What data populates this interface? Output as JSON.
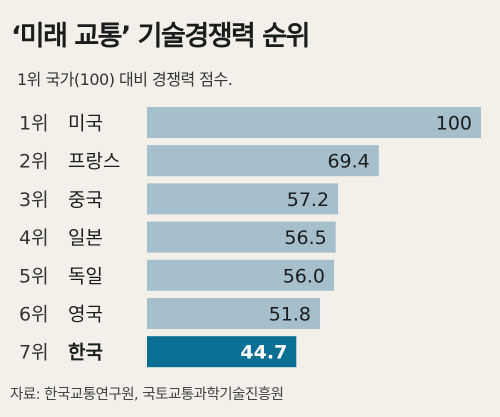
{
  "title": "‘미래 교통’ 기술경쟁력 순위",
  "subtitle": "1위 국가(100) 대비 경쟁력 점수.",
  "source": "자료: 한국교통연구원, 국토교통과학기술진흥원",
  "colors": {
    "bar": "#a5bfcd",
    "highlight": "#0b6e93",
    "background": "#f3f0ea"
  },
  "chart_data": {
    "type": "bar",
    "orientation": "horizontal",
    "categories": [
      "1위 미국",
      "2위 프랑스",
      "3위 중국",
      "4위 일본",
      "5위 독일",
      "6위 영국",
      "7위 한국"
    ],
    "ranks": [
      "1위",
      "2위",
      "3위",
      "4위",
      "5위",
      "6위",
      "7위"
    ],
    "countries": [
      "미국",
      "프랑스",
      "중국",
      "일본",
      "독일",
      "영국",
      "한국"
    ],
    "values": [
      100,
      69.4,
      57.2,
      56.5,
      56.0,
      51.8,
      44.7
    ],
    "labels": [
      "100",
      "69.4",
      "57.2",
      "56.5",
      "56.0",
      "51.8",
      "44.7"
    ],
    "highlight_index": 6,
    "xlim": [
      0,
      100
    ]
  }
}
